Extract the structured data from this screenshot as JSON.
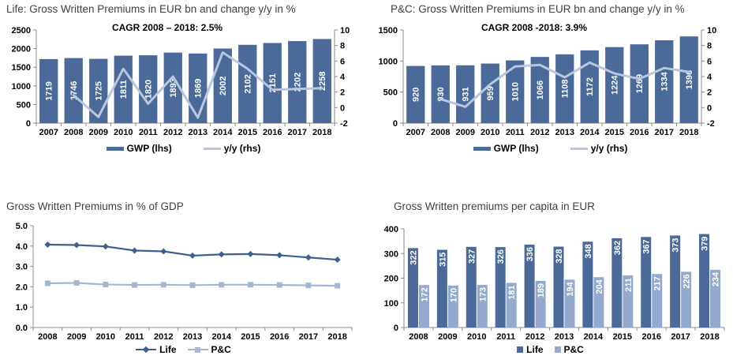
{
  "colors": {
    "dark_blue": "#4a6a99",
    "light_blue": "#93a9ce",
    "pale_line": "#b9c6dd",
    "life_line": "#3e608f",
    "pc_line": "#a3b7d5",
    "axis_gray": "#8c8c8c",
    "title_gray": "#3f3f3f"
  },
  "chart_data": [
    {
      "id": "life-gwp",
      "type": "bar+line",
      "title": "Life: Gross Written Premiums in EUR bn and change y/y in %",
      "subtitle": "CAGR 2008 – 2018: 2.5%",
      "categories": [
        "2007",
        "2008",
        "2009",
        "2010",
        "2011",
        "2012",
        "2013",
        "2014",
        "2015",
        "2016",
        "2017",
        "2018"
      ],
      "bars": {
        "name": "GWP (lhs)",
        "color": "#4a6a99",
        "values": [
          1719,
          1746,
          1725,
          1811,
          1820,
          1893,
          1869,
          2002,
          2102,
          2151,
          2202,
          2258
        ]
      },
      "line": {
        "name": "y/y (rhs)",
        "color": "#b9c6dd",
        "values": [
          null,
          1.6,
          -1.2,
          5.0,
          0.5,
          4.0,
          -1.3,
          7.1,
          5.0,
          2.3,
          2.4,
          2.5
        ]
      },
      "left_axis": {
        "min": 0,
        "max": 2500,
        "tick_values": [
          0,
          500,
          1000,
          1500,
          2000,
          2500
        ],
        "tick_labels": [
          "0",
          "500",
          "1000",
          "1500",
          "2000",
          "2500"
        ]
      },
      "right_axis": {
        "min": -2,
        "max": 10,
        "tick_values": [
          -2,
          0,
          2,
          4,
          6,
          8,
          10
        ],
        "tick_labels": [
          "-2",
          "0",
          "2",
          "4",
          "6",
          "8",
          "10"
        ]
      },
      "legend": [
        "GWP (lhs)",
        "y/y (rhs)"
      ]
    },
    {
      "id": "pc-gwp",
      "type": "bar+line",
      "title": "P&C: Gross Written Premiums in EUR bn and change y/y in %",
      "subtitle": "CAGR 2008 -2018: 3.9%",
      "categories": [
        "2007",
        "2008",
        "2009",
        "2010",
        "2011",
        "2012",
        "2013",
        "2014",
        "2015",
        "2016",
        "2017",
        "2018"
      ],
      "bars": {
        "name": "GWP (lhs)",
        "color": "#4a6a99",
        "values": [
          920,
          930,
          931,
          959,
          1010,
          1066,
          1108,
          1172,
          1224,
          1269,
          1334,
          1396
        ]
      },
      "line": {
        "name": "y/y (rhs)",
        "color": "#b9c6dd",
        "values": [
          null,
          1.1,
          0.1,
          3.0,
          5.3,
          5.5,
          3.9,
          5.8,
          4.4,
          3.7,
          5.1,
          4.6
        ]
      },
      "left_axis": {
        "min": 0,
        "max": 1500,
        "tick_values": [
          0,
          500,
          1000,
          1500
        ],
        "tick_labels": [
          "0",
          "500",
          "1000",
          "1500"
        ]
      },
      "right_axis": {
        "min": -2,
        "max": 10,
        "tick_values": [
          -2,
          0,
          2,
          4,
          6,
          8,
          10
        ],
        "tick_labels": [
          "-2",
          "0",
          "2",
          "4",
          "6",
          "8",
          "10"
        ]
      },
      "legend": [
        "GWP (lhs)",
        "y/y (rhs)"
      ]
    },
    {
      "id": "gwp-gdp",
      "type": "line",
      "title": "Gross Written Premiums in % of GDP",
      "categories": [
        "2008",
        "2009",
        "2010",
        "2011",
        "2012",
        "2013",
        "2014",
        "2015",
        "2016",
        "2017",
        "2018"
      ],
      "series": [
        {
          "name": "Life",
          "color": "#3e608f",
          "marker": "diamond",
          "values": [
            4.07,
            4.05,
            3.98,
            3.78,
            3.74,
            3.53,
            3.59,
            3.61,
            3.55,
            3.44,
            3.33
          ]
        },
        {
          "name": "P&C",
          "color": "#a3b7d5",
          "marker": "square",
          "values": [
            2.17,
            2.19,
            2.11,
            2.09,
            2.1,
            2.08,
            2.1,
            2.1,
            2.09,
            2.07,
            2.05
          ]
        }
      ],
      "left_axis": {
        "min": 0,
        "max": 5,
        "tick_values": [
          0,
          1,
          2,
          3,
          4,
          5
        ],
        "tick_labels": [
          "0.0",
          "1.0",
          "2.0",
          "3.0",
          "4.0",
          "5.0"
        ]
      },
      "legend": [
        "Life",
        "P&C"
      ]
    },
    {
      "id": "gwp-per-capita",
      "type": "grouped-bar",
      "title": "Gross Written premiums per capita in EUR",
      "categories": [
        "2008",
        "2009",
        "2010",
        "2011",
        "2012",
        "2013",
        "2014",
        "2015",
        "2016",
        "2017",
        "2018"
      ],
      "series": [
        {
          "name": "Life",
          "color": "#4a6a99",
          "values": [
            322,
            315,
            327,
            326,
            336,
            328,
            348,
            362,
            367,
            373,
            379
          ]
        },
        {
          "name": "P&C",
          "color": "#93a9ce",
          "values": [
            172,
            170,
            173,
            181,
            189,
            194,
            204,
            211,
            217,
            226,
            234
          ]
        }
      ],
      "left_axis": {
        "min": 0,
        "max": 400,
        "tick_values": [
          0,
          100,
          200,
          300,
          400
        ],
        "tick_labels": [
          "0",
          "100",
          "200",
          "300",
          "400"
        ]
      },
      "legend": [
        "Life",
        "P&C"
      ]
    }
  ]
}
